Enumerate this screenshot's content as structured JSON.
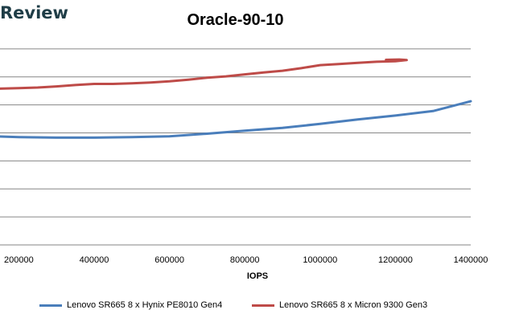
{
  "brand": "Review",
  "chart_data": {
    "type": "line",
    "title": "Oracle-90-10",
    "xlabel": "IOPS",
    "ylabel": "",
    "xlim": [
      150000,
      1400000
    ],
    "x_ticks": [
      200000,
      400000,
      600000,
      800000,
      1000000,
      1200000,
      1400000
    ],
    "x_tick_labels": [
      "200000",
      "400000",
      "600000",
      "800000",
      "1000000",
      "1200000",
      "1400000"
    ],
    "ylim": [
      0,
      8
    ],
    "y_gridlines": [
      0,
      1,
      2,
      3,
      4,
      5,
      6,
      7,
      8
    ],
    "grid": true,
    "legend_position": "bottom",
    "series": [
      {
        "name": "Lenovo SR665 8 x Hynix PE8010 Gen4",
        "color": "#4a7ebb",
        "x": [
          150000,
          200000,
          300000,
          400000,
          500000,
          600000,
          700000,
          800000,
          900000,
          1000000,
          1100000,
          1200000,
          1300000,
          1400000
        ],
        "y": [
          3.87,
          3.85,
          3.83,
          3.83,
          3.85,
          3.88,
          3.97,
          4.08,
          4.18,
          4.32,
          4.48,
          4.62,
          4.78,
          5.13
        ]
      },
      {
        "name": "Lenovo SR665 8 x Micron 9300 Gen3",
        "color": "#be4b48",
        "x": [
          150000,
          200000,
          250000,
          300000,
          350000,
          400000,
          450000,
          500000,
          550000,
          600000,
          650000,
          700000,
          750000,
          800000,
          850000,
          900000,
          950000,
          1000000,
          1050000,
          1100000,
          1150000,
          1200000,
          1230000,
          1210000,
          1175000
        ],
        "y": [
          5.58,
          5.6,
          5.62,
          5.66,
          5.71,
          5.75,
          5.75,
          5.77,
          5.8,
          5.84,
          5.9,
          5.97,
          6.02,
          6.09,
          6.16,
          6.22,
          6.31,
          6.42,
          6.46,
          6.5,
          6.54,
          6.56,
          6.6,
          6.62,
          6.61
        ]
      }
    ]
  }
}
